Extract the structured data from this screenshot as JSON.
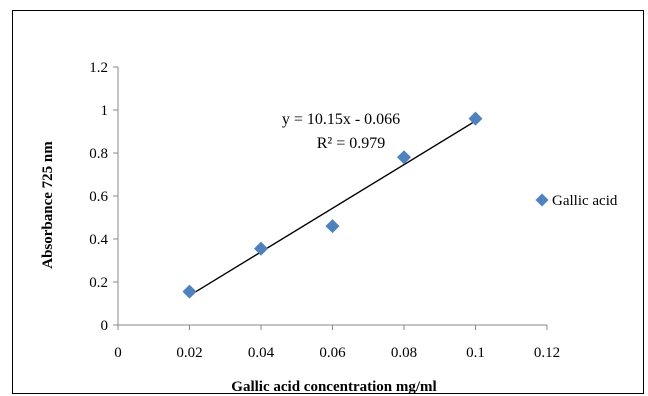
{
  "chart_data": {
    "type": "scatter",
    "title": "",
    "xlabel": "Gallic acid concentration mg/ml",
    "ylabel": "Absorbance 725 nm",
    "xlim": [
      0,
      0.12
    ],
    "ylim": [
      0,
      1.2
    ],
    "x_ticks": [
      "0",
      "0.02",
      "0.04",
      "0.06",
      "0.08",
      "0.1",
      "0.12"
    ],
    "y_ticks": [
      "0",
      "0.2",
      "0.4",
      "0.6",
      "0.8",
      "1",
      "1.2"
    ],
    "grid": false,
    "legend": {
      "position": "right"
    },
    "series": [
      {
        "name": "Gallic acid",
        "color": "#4F81BD",
        "marker": "diamond",
        "x": [
          0.02,
          0.04,
          0.06,
          0.08,
          0.1
        ],
        "y": [
          0.155,
          0.355,
          0.46,
          0.78,
          0.96
        ]
      }
    ],
    "trendline": {
      "type": "linear",
      "slope": 10.15,
      "intercept": -0.066,
      "x_range": [
        0.02,
        0.1
      ],
      "color": "#000000",
      "equation_label": "y = 10.15x - 0.066",
      "r2_label": "R² = 0.979"
    }
  }
}
